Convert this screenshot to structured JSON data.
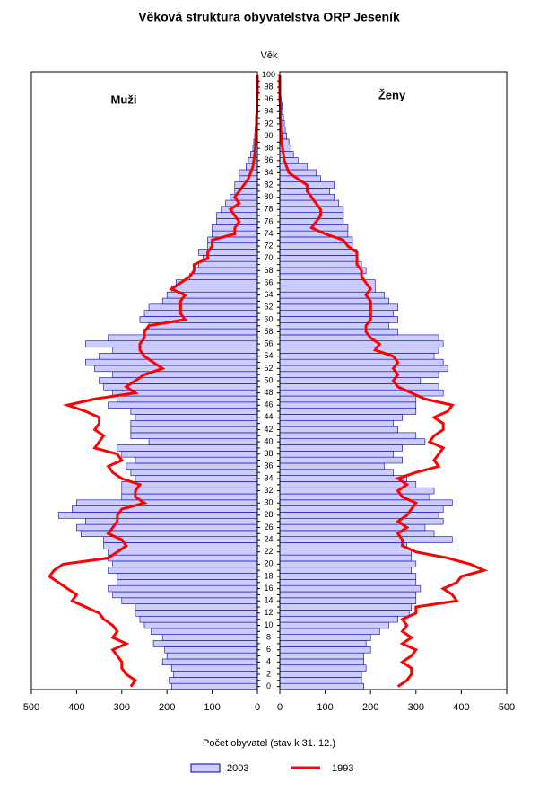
{
  "chart_data": {
    "type": "pyramid",
    "title": "Věková struktura obyvatelstva ORP Jeseník",
    "ylabel": "Věk",
    "xlabel": "Počet obyvatel (stav k 31. 12.)",
    "left_label": "Muži",
    "right_label": "Ženy",
    "categories": [
      0,
      null,
      2,
      null,
      4,
      null,
      6,
      null,
      8,
      null,
      10,
      null,
      12,
      null,
      14,
      null,
      16,
      null,
      18,
      null,
      20,
      null,
      22,
      null,
      24,
      null,
      26,
      null,
      28,
      null,
      30,
      null,
      32,
      null,
      34,
      null,
      36,
      null,
      38,
      null,
      40,
      null,
      42,
      null,
      44,
      null,
      46,
      null,
      48,
      null,
      50,
      null,
      52,
      null,
      54,
      null,
      56,
      null,
      58,
      null,
      60,
      null,
      62,
      null,
      64,
      null,
      66,
      null,
      68,
      null,
      70,
      null,
      72,
      null,
      74,
      null,
      76,
      null,
      78,
      null,
      80,
      null,
      82,
      null,
      84,
      null,
      86,
      null,
      88,
      null,
      90,
      null,
      92,
      null,
      94,
      null,
      96,
      null,
      98,
      null,
      100
    ],
    "series": [
      {
        "name": "2003",
        "kind": "bar",
        "color": "#ccccff",
        "edge": "#0000aa",
        "left": [
          190,
          195,
          185,
          190,
          210,
          200,
          205,
          230,
          210,
          235,
          250,
          260,
          270,
          270,
          300,
          320,
          330,
          310,
          310,
          330,
          320,
          330,
          330,
          340,
          340,
          390,
          400,
          380,
          440,
          410,
          400,
          300,
          300,
          300,
          270,
          280,
          290,
          270,
          300,
          310,
          240,
          280,
          280,
          280,
          270,
          280,
          330,
          310,
          320,
          340,
          350,
          320,
          360,
          380,
          350,
          320,
          380,
          330,
          250,
          240,
          260,
          250,
          240,
          210,
          200,
          190,
          180,
          150,
          140,
          130,
          120,
          130,
          110,
          110,
          100,
          100,
          90,
          90,
          80,
          70,
          60,
          50,
          50,
          40,
          40,
          25,
          20,
          15,
          10,
          8,
          6,
          5,
          4,
          3,
          2,
          2,
          1,
          1,
          1,
          0,
          0
        ],
        "right": [
          185,
          180,
          180,
          190,
          185,
          185,
          200,
          190,
          200,
          220,
          240,
          260,
          285,
          290,
          300,
          300,
          310,
          300,
          300,
          290,
          300,
          290,
          290,
          280,
          380,
          340,
          320,
          360,
          350,
          360,
          380,
          330,
          340,
          300,
          280,
          250,
          230,
          270,
          250,
          270,
          320,
          300,
          260,
          250,
          270,
          300,
          300,
          300,
          360,
          350,
          310,
          350,
          370,
          360,
          340,
          350,
          360,
          350,
          260,
          240,
          260,
          250,
          260,
          240,
          230,
          210,
          210,
          180,
          190,
          180,
          170,
          170,
          160,
          160,
          150,
          150,
          140,
          140,
          140,
          130,
          120,
          110,
          120,
          90,
          80,
          60,
          40,
          30,
          25,
          20,
          15,
          12,
          10,
          8,
          6,
          5,
          3,
          2,
          1,
          1,
          0
        ]
      },
      {
        "name": "1993",
        "kind": "line",
        "color": "#ff0000",
        "left": [
          280,
          270,
          290,
          300,
          300,
          310,
          320,
          290,
          320,
          310,
          320,
          340,
          350,
          380,
          410,
          400,
          420,
          440,
          460,
          450,
          430,
          330,
          310,
          290,
          300,
          330,
          320,
          310,
          310,
          300,
          250,
          270,
          270,
          260,
          300,
          320,
          330,
          300,
          310,
          360,
          350,
          340,
          360,
          350,
          350,
          380,
          420,
          360,
          270,
          290,
          270,
          250,
          210,
          230,
          250,
          260,
          260,
          250,
          250,
          240,
          160,
          170,
          170,
          170,
          160,
          190,
          170,
          150,
          140,
          140,
          110,
          110,
          100,
          100,
          50,
          50,
          40,
          50,
          60,
          40,
          50,
          40,
          30,
          20,
          15,
          10,
          8,
          6,
          5,
          4,
          3,
          3,
          2,
          2,
          1,
          1,
          1,
          0,
          0,
          0,
          0
        ],
        "right": [
          260,
          280,
          290,
          290,
          270,
          290,
          300,
          270,
          290,
          270,
          280,
          270,
          300,
          300,
          390,
          380,
          360,
          390,
          400,
          450,
          420,
          370,
          300,
          270,
          270,
          260,
          280,
          260,
          280,
          290,
          300,
          270,
          260,
          280,
          260,
          300,
          350,
          340,
          350,
          360,
          330,
          340,
          360,
          360,
          340,
          370,
          380,
          320,
          290,
          260,
          250,
          260,
          250,
          260,
          250,
          210,
          220,
          200,
          190,
          190,
          200,
          200,
          200,
          200,
          190,
          200,
          190,
          180,
          180,
          170,
          170,
          170,
          150,
          140,
          100,
          70,
          80,
          90,
          90,
          80,
          70,
          60,
          60,
          40,
          20,
          15,
          10,
          8,
          6,
          4,
          3,
          2,
          2,
          1,
          1,
          1,
          0,
          0,
          0,
          0,
          0
        ]
      }
    ],
    "xlim": [
      0,
      500
    ],
    "xticks": [
      0,
      100,
      200,
      300,
      400,
      500
    ]
  }
}
